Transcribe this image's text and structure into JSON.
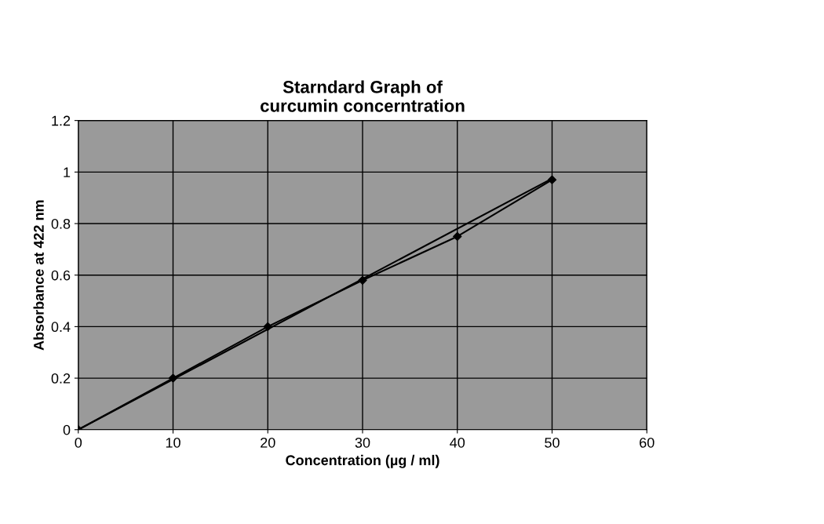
{
  "chart_data": {
    "type": "line",
    "title": "Starndard Graph of\ncurcumin concerntration",
    "xlabel": "Concentration (µg / ml)",
    "ylabel": "Absorbance at 422 nm",
    "xlim": [
      0,
      60
    ],
    "xticks": [
      0,
      10,
      20,
      30,
      40,
      50,
      60
    ],
    "ylim": [
      0,
      1.2
    ],
    "yticks": [
      0,
      0.2,
      0.4,
      0.6,
      0.8,
      1,
      1.2
    ],
    "grid": true,
    "legend": false,
    "series": [
      {
        "color": "#000000",
        "x": [
          0,
          10,
          20,
          30,
          40,
          50
        ],
        "values": [
          0,
          0.2,
          0.4,
          0.58,
          0.75,
          0.97
        ],
        "marker": "diamond"
      },
      {
        "color": "#000000",
        "x": [
          0,
          50
        ],
        "values": [
          0,
          0.975
        ],
        "marker": "none"
      }
    ]
  }
}
